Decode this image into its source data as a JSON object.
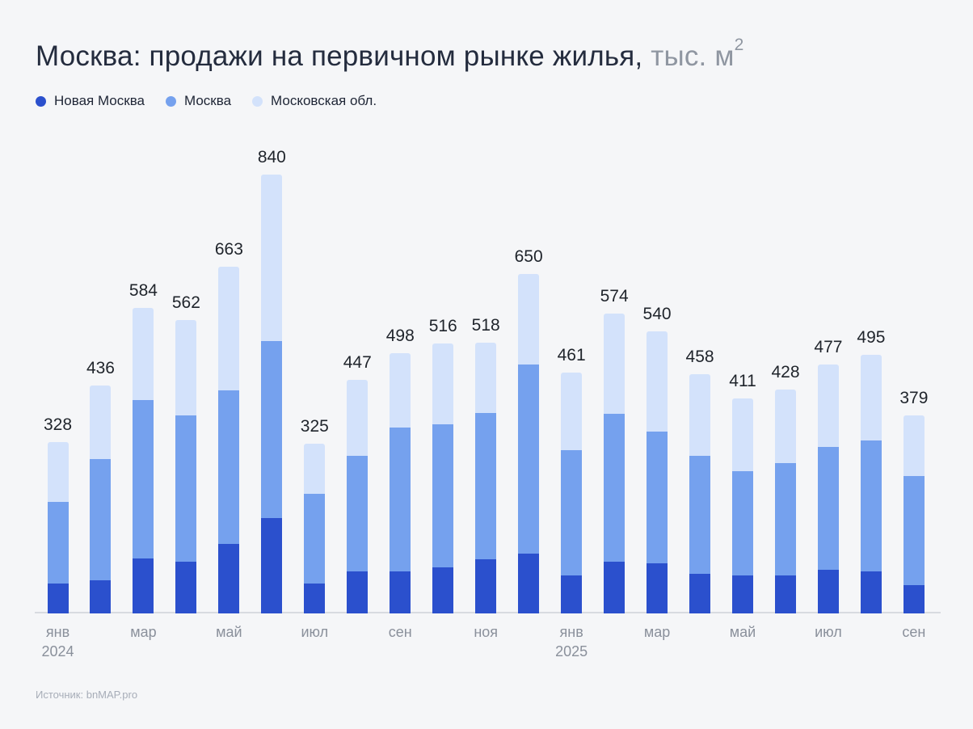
{
  "title": {
    "main": "Москва: продажи на первичном рынке жилья,",
    "unit": " тыс. м",
    "unit_sup": "2"
  },
  "footer": {
    "source_label": "Источник: bnMAP.pro"
  },
  "colors": {
    "background": "#F5F6F8",
    "axis_line": "#D8DBE0",
    "title": "#242C3E",
    "title_unit": "#8F96A1",
    "value_label": "#1F242B",
    "tick_label": "#8A909B",
    "source_label": "#A7ADB8"
  },
  "chart_data": {
    "type": "bar",
    "stacked": true,
    "title": "Москва: продажи на первичном рынке жилья, тыс. м²",
    "unit": "тыс. м²",
    "legend_position": "top-left",
    "grid": false,
    "y_axis_visible": false,
    "bar_count": 21,
    "x_range_note": "monthly, Jan 2024 — Sep 2025",
    "ticks": [
      {
        "index": 0,
        "label": "янв",
        "year": "2024"
      },
      {
        "index": 2,
        "label": "мар"
      },
      {
        "index": 4,
        "label": "май"
      },
      {
        "index": 6,
        "label": "июл"
      },
      {
        "index": 8,
        "label": "сен"
      },
      {
        "index": 10,
        "label": "ноя"
      },
      {
        "index": 12,
        "label": "янв",
        "year": "2025"
      },
      {
        "index": 14,
        "label": "мар"
      },
      {
        "index": 16,
        "label": "май"
      },
      {
        "index": 18,
        "label": "июл"
      },
      {
        "index": 20,
        "label": "сен"
      }
    ],
    "series": [
      {
        "name": "Новая Москва",
        "color": "#2B50CD",
        "values": [
          57,
          64,
          105,
          99,
          133,
          183,
          57,
          80,
          80,
          88,
          104,
          114,
          72,
          99,
          96,
          76,
          72,
          73,
          84,
          80,
          54
        ]
      },
      {
        "name": "Москва",
        "color": "#75A1EE",
        "values": [
          156,
          231,
          303,
          280,
          294,
          339,
          172,
          221,
          276,
          274,
          280,
          363,
          241,
          283,
          252,
          226,
          200,
          215,
          234,
          251,
          209
        ]
      },
      {
        "name": "Московская обл.",
        "color": "#D3E2FB",
        "values": [
          115,
          141,
          176,
          183,
          236,
          318,
          96,
          146,
          142,
          154,
          134,
          173,
          148,
          192,
          192,
          156,
          139,
          140,
          159,
          164,
          116
        ]
      }
    ],
    "totals": [
      328,
      436,
      584,
      562,
      663,
      840,
      325,
      447,
      498,
      516,
      518,
      650,
      461,
      574,
      540,
      458,
      411,
      428,
      477,
      495,
      379
    ]
  }
}
